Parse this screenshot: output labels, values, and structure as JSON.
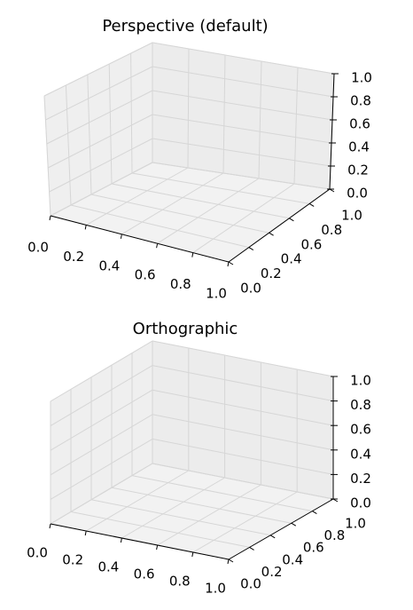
{
  "chart_data": [
    {
      "type": "3d",
      "title": "Perspective (default)",
      "projection": "perspective",
      "xlim": [
        0,
        1
      ],
      "ylim": [
        0,
        1
      ],
      "zlim": [
        0,
        1
      ],
      "xticks": [
        {
          "value": 0,
          "label": "0.0"
        },
        0.2,
        0.4,
        0.6,
        0.8,
        {
          "value": 1,
          "label": "1.0"
        }
      ],
      "yticks": [
        {
          "value": 0,
          "label": "0.0"
        },
        0.2,
        0.4,
        0.6,
        0.8,
        {
          "value": 1,
          "label": "1.0"
        }
      ],
      "zticks": [
        {
          "value": 0,
          "label": "0.0"
        },
        0.2,
        0.4,
        0.6,
        0.8,
        {
          "value": 1,
          "label": "1.0"
        }
      ],
      "grid": true
    },
    {
      "type": "3d",
      "title": "Orthographic",
      "projection": "orthographic",
      "xlim": [
        0,
        1
      ],
      "ylim": [
        0,
        1
      ],
      "zlim": [
        0,
        1
      ],
      "xticks": [
        {
          "value": 0,
          "label": "0.0"
        },
        0.2,
        0.4,
        0.6,
        0.8,
        {
          "value": 1,
          "label": "1.0"
        }
      ],
      "yticks": [
        {
          "value": 0,
          "label": "0.0"
        },
        0.2,
        0.4,
        0.6,
        0.8,
        {
          "value": 1,
          "label": "1.0"
        }
      ],
      "zticks": [
        {
          "value": 0,
          "label": "0.0"
        },
        0.2,
        0.4,
        0.6,
        0.8,
        {
          "value": 1,
          "label": "1.0"
        }
      ],
      "grid": true
    }
  ]
}
